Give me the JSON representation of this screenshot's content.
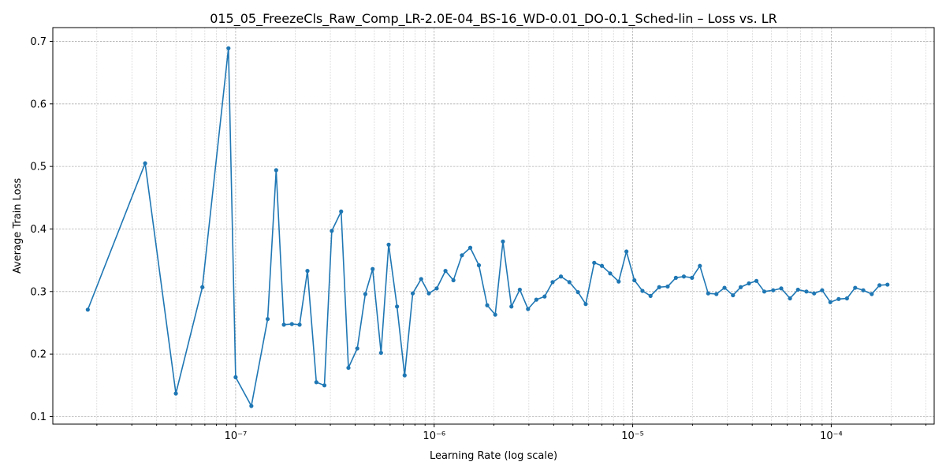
{
  "chart_data": {
    "type": "line",
    "title": "015_05_FreezeCls_Raw_Comp_LR-2.0E-04_BS-16_WD-0.01_DO-0.1_Sched-lin – Loss vs. LR",
    "xlabel": "Learning Rate (log scale)",
    "ylabel": "Average Train Loss",
    "xscale": "log",
    "xlim": [
      1.2e-08,
      0.00033
    ],
    "ylim": [
      0.088,
      0.722
    ],
    "x_ticks": [
      {
        "value": 1e-07,
        "label": "10⁻⁷"
      },
      {
        "value": 1e-06,
        "label": "10⁻⁶"
      },
      {
        "value": 1e-05,
        "label": "10⁻⁵"
      },
      {
        "value": 0.0001,
        "label": "10⁻⁴"
      }
    ],
    "y_ticks": [
      {
        "value": 0.1,
        "label": "0.1"
      },
      {
        "value": 0.2,
        "label": "0.2"
      },
      {
        "value": 0.3,
        "label": "0.3"
      },
      {
        "value": 0.4,
        "label": "0.4"
      },
      {
        "value": 0.5,
        "label": "0.5"
      },
      {
        "value": 0.6,
        "label": "0.6"
      },
      {
        "value": 0.7,
        "label": "0.7"
      }
    ],
    "grid": true,
    "color": "#1f77b4",
    "series": [
      {
        "x": [
          1.8e-08,
          3.5e-08,
          5e-08,
          6.8e-08,
          9.2e-08,
          1e-07,
          1.2e-07,
          1.45e-07,
          1.6e-07,
          1.75e-07,
          1.92e-07,
          2.1e-07,
          2.3e-07,
          2.55e-07,
          2.8e-07,
          3.05e-07,
          3.4e-07,
          3.7e-07,
          4.1e-07,
          4.5e-07,
          4.9e-07,
          5.4e-07,
          5.9e-07,
          6.5e-07,
          7.1e-07,
          7.8e-07,
          8.6e-07,
          9.4e-07,
          1.03e-06,
          1.14e-06,
          1.25e-06,
          1.38e-06,
          1.52e-06,
          1.68e-06,
          1.85e-06,
          2.03e-06,
          2.22e-06,
          2.45e-06,
          2.7e-06,
          2.97e-06,
          3.27e-06,
          3.6e-06,
          3.95e-06,
          4.35e-06,
          4.8e-06,
          5.3e-06,
          5.8e-06,
          6.4e-06,
          7e-06,
          7.7e-06,
          8.5e-06,
          9.3e-06,
          1.02e-05,
          1.12e-05,
          1.23e-05,
          1.36e-05,
          1.5e-05,
          1.65e-05,
          1.81e-05,
          1.99e-05,
          2.18e-05,
          2.4e-05,
          2.64e-05,
          2.9e-05,
          3.2e-05,
          3.5e-05,
          3.85e-05,
          4.2e-05,
          4.6e-05,
          5.1e-05,
          5.6e-05,
          6.2e-05,
          6.8e-05,
          7.5e-05,
          8.2e-05,
          9e-05,
          9.9e-05,
          0.000109,
          0.00012,
          0.000132,
          0.000145,
          0.00016,
          0.000175,
          0.000192
        ],
        "y": [
          0.271,
          0.505,
          0.137,
          0.307,
          0.689,
          0.163,
          0.117,
          0.256,
          0.494,
          0.247,
          0.248,
          0.247,
          0.333,
          0.155,
          0.15,
          0.397,
          0.428,
          0.178,
          0.209,
          0.296,
          0.336,
          0.202,
          0.375,
          0.276,
          0.166,
          0.297,
          0.32,
          0.297,
          0.305,
          0.333,
          0.318,
          0.358,
          0.37,
          0.342,
          0.278,
          0.263,
          0.38,
          0.276,
          0.303,
          0.272,
          0.287,
          0.292,
          0.315,
          0.324,
          0.315,
          0.299,
          0.28,
          0.346,
          0.341,
          0.329,
          0.316,
          0.364,
          0.318,
          0.301,
          0.293,
          0.307,
          0.308,
          0.322,
          0.324,
          0.322,
          0.341,
          0.297,
          0.296,
          0.306,
          0.294,
          0.307,
          0.313,
          0.317,
          0.3,
          0.302,
          0.305,
          0.289,
          0.303,
          0.3,
          0.297,
          0.302,
          0.283,
          0.288,
          0.289,
          0.306,
          0.302,
          0.296,
          0.31,
          0.311
        ]
      }
    ]
  }
}
